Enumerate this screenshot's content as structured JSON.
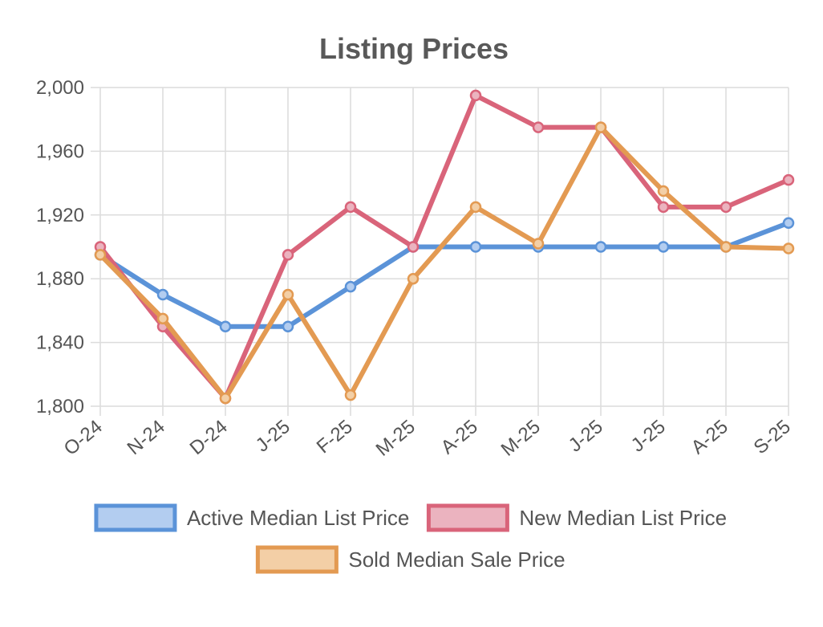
{
  "chart_data": {
    "type": "line",
    "title": "Listing Prices",
    "categories": [
      "O-24",
      "N-24",
      "D-24",
      "J-25",
      "F-25",
      "M-25",
      "A-25",
      "M-25",
      "J-25",
      "J-25",
      "A-25",
      "S-25"
    ],
    "ylim": [
      1800,
      2000
    ],
    "yticks": [
      "1,800",
      "1,840",
      "1,880",
      "1,920",
      "1,960",
      "2,000"
    ],
    "ytick_values": [
      1800,
      1840,
      1880,
      1920,
      1960,
      2000
    ],
    "grid": true,
    "legend_position": "bottom",
    "series": [
      {
        "name": "Active Median List Price",
        "color": "#5b93d8",
        "fill": "#b3cdf0",
        "values": [
          1895,
          1870,
          1850,
          1850,
          1875,
          1900,
          1900,
          1900,
          1900,
          1900,
          1900,
          1915
        ]
      },
      {
        "name": "New Median List Price",
        "color": "#d9647a",
        "fill": "#ebb3bf",
        "values": [
          1900,
          1850,
          1805,
          1895,
          1925,
          1900,
          1995,
          1975,
          1975,
          1925,
          1925,
          1942
        ]
      },
      {
        "name": "Sold Median Sale Price",
        "color": "#e39a52",
        "fill": "#f3cfa6",
        "values": [
          1895,
          1855,
          1805,
          1870,
          1807,
          1880,
          1925,
          1902,
          1975,
          1935,
          1900,
          1899
        ]
      }
    ]
  }
}
